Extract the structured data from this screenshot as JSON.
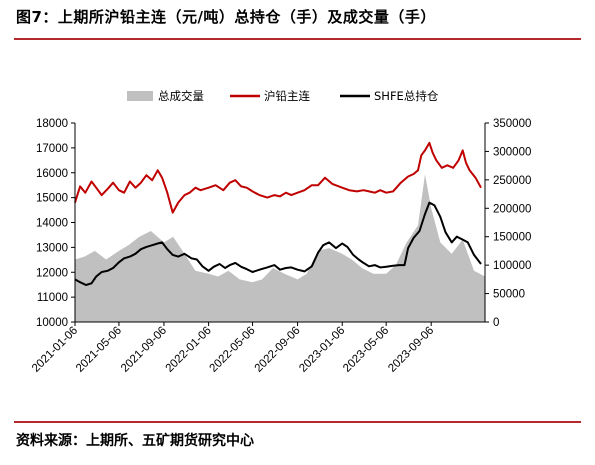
{
  "figure": {
    "title": "图7：上期所沪铅主连（元/吨）总持仓（手）及成交量（手）",
    "source": "资料来源：上期所、五矿期货研究中心"
  },
  "chart_data": {
    "type": "line",
    "legend": [
      "总成交量",
      "沪铅主连",
      "SHFE总持仓"
    ],
    "legend_placement": "top",
    "grid": false,
    "x_labels": [
      "2021-01-06",
      "2021-05-06",
      "2021-09-06",
      "2022-01-06",
      "2022-05-06",
      "2022-09-06",
      "2023-01-06",
      "2023-05-06",
      "2023-09-06"
    ],
    "x_range": [
      "2021-01-06",
      "2024-01-31"
    ],
    "y_left": {
      "min": 10000,
      "max": 18000,
      "ticks": [
        10000,
        11000,
        12000,
        13000,
        14000,
        15000,
        16000,
        17000,
        18000
      ]
    },
    "y_right": {
      "min": 0,
      "max": 350000,
      "ticks": [
        0,
        50000,
        100000,
        150000,
        200000,
        250000,
        300000,
        350000
      ]
    },
    "colors": {
      "volume": "#c0c0c0",
      "price": "#c00000",
      "oi": "#000000"
    },
    "series": [
      {
        "name": "沪铅主连",
        "axis": "left",
        "points": [
          [
            "2021-01-06",
            14800
          ],
          [
            "2021-01-20",
            15450
          ],
          [
            "2021-02-03",
            15200
          ],
          [
            "2021-02-20",
            15650
          ],
          [
            "2021-03-05",
            15400
          ],
          [
            "2021-03-20",
            15100
          ],
          [
            "2021-04-05",
            15350
          ],
          [
            "2021-04-20",
            15600
          ],
          [
            "2021-05-06",
            15300
          ],
          [
            "2021-05-20",
            15200
          ],
          [
            "2021-06-05",
            15650
          ],
          [
            "2021-06-20",
            15400
          ],
          [
            "2021-07-05",
            15600
          ],
          [
            "2021-07-20",
            15900
          ],
          [
            "2021-08-05",
            15700
          ],
          [
            "2021-08-20",
            16100
          ],
          [
            "2021-09-01",
            15800
          ],
          [
            "2021-09-15",
            15200
          ],
          [
            "2021-09-30",
            14400
          ],
          [
            "2021-10-15",
            14800
          ],
          [
            "2021-11-01",
            15100
          ],
          [
            "2021-11-15",
            15200
          ],
          [
            "2021-12-01",
            15400
          ],
          [
            "2021-12-15",
            15300
          ],
          [
            "2022-01-06",
            15400
          ],
          [
            "2022-01-25",
            15500
          ],
          [
            "2022-02-15",
            15300
          ],
          [
            "2022-03-05",
            15600
          ],
          [
            "2022-03-20",
            15700
          ],
          [
            "2022-04-05",
            15450
          ],
          [
            "2022-04-20",
            15400
          ],
          [
            "2022-05-06",
            15250
          ],
          [
            "2022-05-25",
            15100
          ],
          [
            "2022-06-15",
            15000
          ],
          [
            "2022-07-05",
            15100
          ],
          [
            "2022-07-20",
            15050
          ],
          [
            "2022-08-05",
            15200
          ],
          [
            "2022-08-20",
            15100
          ],
          [
            "2022-09-06",
            15200
          ],
          [
            "2022-09-25",
            15300
          ],
          [
            "2022-10-15",
            15500
          ],
          [
            "2022-11-01",
            15500
          ],
          [
            "2022-11-20",
            15800
          ],
          [
            "2022-12-10",
            15550
          ],
          [
            "2023-01-06",
            15400
          ],
          [
            "2023-01-25",
            15300
          ],
          [
            "2023-02-15",
            15250
          ],
          [
            "2023-03-05",
            15300
          ],
          [
            "2023-03-20",
            15250
          ],
          [
            "2023-04-05",
            15200
          ],
          [
            "2023-04-20",
            15300
          ],
          [
            "2023-05-06",
            15200
          ],
          [
            "2023-05-25",
            15250
          ],
          [
            "2023-06-15",
            15600
          ],
          [
            "2023-07-05",
            15850
          ],
          [
            "2023-07-20",
            15950
          ],
          [
            "2023-08-01",
            16100
          ],
          [
            "2023-08-10",
            16700
          ],
          [
            "2023-08-20",
            16900
          ],
          [
            "2023-09-01",
            17200
          ],
          [
            "2023-09-10",
            16800
          ],
          [
            "2023-09-20",
            16500
          ],
          [
            "2023-10-05",
            16200
          ],
          [
            "2023-10-20",
            16300
          ],
          [
            "2023-11-05",
            16200
          ],
          [
            "2023-11-20",
            16500
          ],
          [
            "2023-12-01",
            16900
          ],
          [
            "2023-12-10",
            16400
          ],
          [
            "2023-12-20",
            16100
          ],
          [
            "2024-01-05",
            15800
          ],
          [
            "2024-01-20",
            15400
          ]
        ]
      },
      {
        "name": "SHFE总持仓",
        "axis": "right",
        "points": [
          [
            "2021-01-06",
            75000
          ],
          [
            "2021-01-20",
            70000
          ],
          [
            "2021-02-05",
            65000
          ],
          [
            "2021-02-20",
            68000
          ],
          [
            "2021-03-05",
            80000
          ],
          [
            "2021-03-20",
            88000
          ],
          [
            "2021-04-05",
            90000
          ],
          [
            "2021-04-20",
            95000
          ],
          [
            "2021-05-06",
            105000
          ],
          [
            "2021-05-20",
            112000
          ],
          [
            "2021-06-05",
            115000
          ],
          [
            "2021-06-20",
            120000
          ],
          [
            "2021-07-05",
            128000
          ],
          [
            "2021-07-20",
            132000
          ],
          [
            "2021-08-05",
            135000
          ],
          [
            "2021-08-20",
            138000
          ],
          [
            "2021-09-01",
            140000
          ],
          [
            "2021-09-15",
            128000
          ],
          [
            "2021-09-30",
            118000
          ],
          [
            "2021-10-15",
            115000
          ],
          [
            "2021-11-01",
            120000
          ],
          [
            "2021-11-20",
            112000
          ],
          [
            "2021-12-05",
            110000
          ],
          [
            "2021-12-20",
            98000
          ],
          [
            "2022-01-06",
            90000
          ],
          [
            "2022-01-20",
            97000
          ],
          [
            "2022-02-05",
            102000
          ],
          [
            "2022-02-20",
            95000
          ],
          [
            "2022-03-05",
            100000
          ],
          [
            "2022-03-20",
            104000
          ],
          [
            "2022-04-05",
            97000
          ],
          [
            "2022-04-20",
            93000
          ],
          [
            "2022-05-06",
            88000
          ],
          [
            "2022-05-25",
            92000
          ],
          [
            "2022-06-15",
            96000
          ],
          [
            "2022-07-05",
            100000
          ],
          [
            "2022-07-20",
            92000
          ],
          [
            "2022-08-05",
            95000
          ],
          [
            "2022-08-20",
            96000
          ],
          [
            "2022-09-06",
            92000
          ],
          [
            "2022-09-25",
            89000
          ],
          [
            "2022-10-15",
            98000
          ],
          [
            "2022-11-01",
            122000
          ],
          [
            "2022-11-15",
            135000
          ],
          [
            "2022-12-01",
            140000
          ],
          [
            "2022-12-20",
            130000
          ],
          [
            "2023-01-06",
            138000
          ],
          [
            "2023-01-20",
            132000
          ],
          [
            "2023-02-05",
            118000
          ],
          [
            "2023-02-20",
            110000
          ],
          [
            "2023-03-05",
            104000
          ],
          [
            "2023-03-20",
            98000
          ],
          [
            "2023-04-05",
            100000
          ],
          [
            "2023-04-20",
            96000
          ],
          [
            "2023-05-06",
            97000
          ],
          [
            "2023-05-25",
            99000
          ],
          [
            "2023-06-10",
            100000
          ],
          [
            "2023-06-25",
            100000
          ],
          [
            "2023-07-05",
            130000
          ],
          [
            "2023-07-20",
            148000
          ],
          [
            "2023-08-05",
            160000
          ],
          [
            "2023-08-20",
            190000
          ],
          [
            "2023-09-01",
            210000
          ],
          [
            "2023-09-15",
            205000
          ],
          [
            "2023-10-01",
            185000
          ],
          [
            "2023-10-15",
            158000
          ],
          [
            "2023-11-01",
            140000
          ],
          [
            "2023-11-15",
            150000
          ],
          [
            "2023-12-01",
            145000
          ],
          [
            "2023-12-15",
            140000
          ],
          [
            "2024-01-01",
            118000
          ],
          [
            "2024-01-20",
            102000
          ]
        ]
      },
      {
        "name": "总成交量",
        "axis": "right",
        "type": "area",
        "points": [
          [
            "2021-01-06",
            110000
          ],
          [
            "2021-02-01",
            115000
          ],
          [
            "2021-03-01",
            125000
          ],
          [
            "2021-04-01",
            110000
          ],
          [
            "2021-05-06",
            125000
          ],
          [
            "2021-06-01",
            135000
          ],
          [
            "2021-07-01",
            150000
          ],
          [
            "2021-08-01",
            160000
          ],
          [
            "2021-09-06",
            140000
          ],
          [
            "2021-10-01",
            150000
          ],
          [
            "2021-11-01",
            120000
          ],
          [
            "2021-12-01",
            90000
          ],
          [
            "2022-01-06",
            85000
          ],
          [
            "2022-02-01",
            80000
          ],
          [
            "2022-03-01",
            90000
          ],
          [
            "2022-04-01",
            75000
          ],
          [
            "2022-05-06",
            70000
          ],
          [
            "2022-06-01",
            75000
          ],
          [
            "2022-07-01",
            95000
          ],
          [
            "2022-08-01",
            85000
          ],
          [
            "2022-09-06",
            75000
          ],
          [
            "2022-10-01",
            85000
          ],
          [
            "2022-11-01",
            125000
          ],
          [
            "2022-12-01",
            130000
          ],
          [
            "2023-01-06",
            120000
          ],
          [
            "2023-02-01",
            110000
          ],
          [
            "2023-03-01",
            95000
          ],
          [
            "2023-04-01",
            85000
          ],
          [
            "2023-05-06",
            85000
          ],
          [
            "2023-06-01",
            100000
          ],
          [
            "2023-07-01",
            140000
          ],
          [
            "2023-08-01",
            170000
          ],
          [
            "2023-08-20",
            260000
          ],
          [
            "2023-09-06",
            200000
          ],
          [
            "2023-10-01",
            140000
          ],
          [
            "2023-11-01",
            120000
          ],
          [
            "2023-12-01",
            145000
          ],
          [
            "2024-01-01",
            90000
          ],
          [
            "2024-01-31",
            80000
          ]
        ]
      }
    ]
  }
}
